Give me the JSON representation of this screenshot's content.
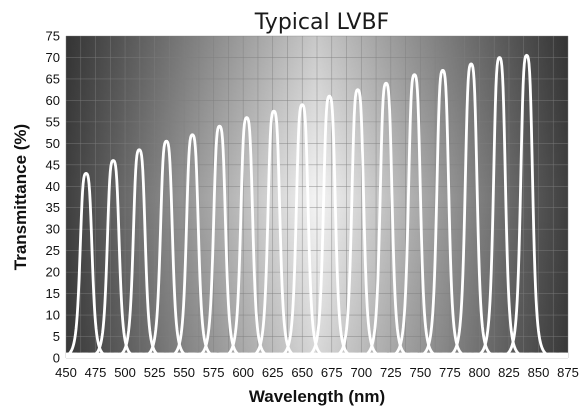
{
  "chart_data": {
    "type": "line",
    "title": "Typical LVBF",
    "xlabel": "Wavelength (nm)",
    "ylabel": "Transmittance (%)",
    "xlim": [
      450,
      875
    ],
    "ylim": [
      0,
      75
    ],
    "x_ticks": [
      450,
      475,
      500,
      525,
      550,
      575,
      600,
      625,
      650,
      675,
      700,
      725,
      750,
      775,
      800,
      825,
      850,
      875
    ],
    "y_ticks": [
      0,
      5,
      10,
      15,
      20,
      25,
      30,
      35,
      40,
      45,
      50,
      55,
      60,
      65,
      70,
      75
    ],
    "grid": true,
    "legend": "none",
    "colors": {
      "curve": "#ffffff",
      "background_dark": "#3f3f3f",
      "background_light": "#f4f4f4",
      "grid": "#7f7f7f"
    },
    "peaks": [
      {
        "x": 467,
        "y": 43
      },
      {
        "x": 490,
        "y": 46
      },
      {
        "x": 512,
        "y": 48.5
      },
      {
        "x": 535,
        "y": 50.5
      },
      {
        "x": 557,
        "y": 52
      },
      {
        "x": 580,
        "y": 54
      },
      {
        "x": 603,
        "y": 56
      },
      {
        "x": 626,
        "y": 57.5
      },
      {
        "x": 650,
        "y": 59
      },
      {
        "x": 673,
        "y": 61
      },
      {
        "x": 697,
        "y": 62.5
      },
      {
        "x": 721,
        "y": 64
      },
      {
        "x": 745,
        "y": 66
      },
      {
        "x": 769,
        "y": 67
      },
      {
        "x": 793,
        "y": 68.5
      },
      {
        "x": 817,
        "y": 70
      },
      {
        "x": 840,
        "y": 70.5
      }
    ],
    "peak_fwhm_nm": 11
  }
}
